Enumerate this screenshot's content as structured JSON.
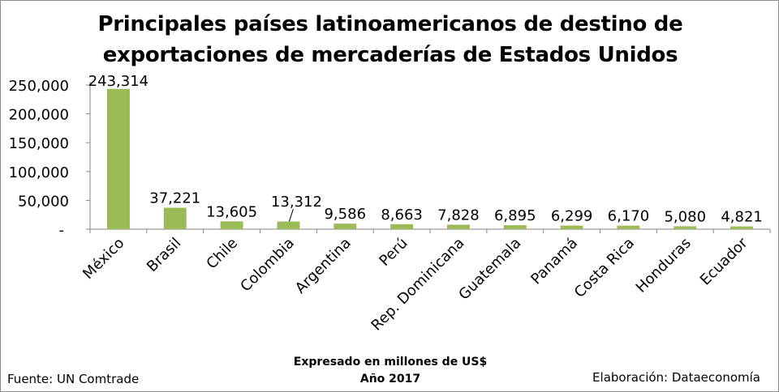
{
  "chart_data": {
    "type": "bar",
    "title_line1": "Principales países latinoamericanos de destino de",
    "title_line2": "exportaciones de mercaderías de Estados Unidos",
    "categories": [
      "México",
      "Brasil",
      "Chile",
      "Colombia",
      "Argentina",
      "Perú",
      "Rep. Dominicana",
      "Guatemala",
      "Panamá",
      "Costa Rica",
      "Honduras",
      "Ecuador"
    ],
    "values": [
      243314,
      37221,
      13605,
      13312,
      9586,
      8663,
      7828,
      6895,
      6299,
      6170,
      5080,
      4821
    ],
    "value_labels": [
      "243,314",
      "37,221",
      "13,605",
      "13,312",
      "9,586",
      "8,663",
      "7,828",
      "6,895",
      "6,299",
      "6,170",
      "5,080",
      "4,821"
    ],
    "ylim": [
      0,
      250000
    ],
    "yticks": [
      0,
      50000,
      100000,
      150000,
      200000,
      250000
    ],
    "ytick_labels": [
      "-",
      "50,000",
      "100,000",
      "150,000",
      "200,000",
      "250,000"
    ],
    "bar_color": "#9bbb59",
    "grid": false,
    "legend": "none"
  },
  "footer": {
    "source": "Fuente:  UN Comtrade",
    "note_line1": "Expresado en millones de US$",
    "note_line2": "Año 2017",
    "credit": "Elaboración: Dataeconomía"
  }
}
